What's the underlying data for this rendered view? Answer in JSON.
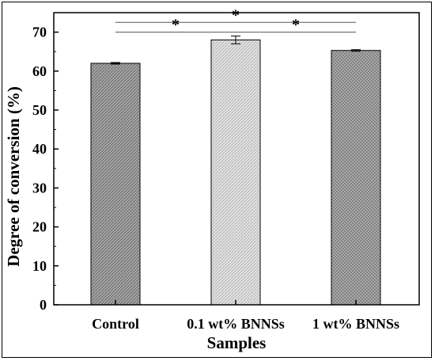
{
  "chart_data": {
    "type": "bar",
    "categories": [
      "Control",
      "0.1 wt% BNNSs",
      "1 wt% BNNSs"
    ],
    "values": [
      62.0,
      68.0,
      65.3
    ],
    "errors": [
      0.2,
      1.0,
      0.2
    ],
    "xlabel": "Samples",
    "ylabel": "Degree of conversion (%)",
    "ylim": [
      0,
      75
    ],
    "yticks": [
      0,
      10,
      20,
      30,
      40,
      50,
      60,
      70
    ],
    "grid": false,
    "bar_fills": [
      "#9a9a9a",
      "#d9d9d9",
      "#a8a8a8"
    ],
    "significance": [
      {
        "from": 0,
        "to": 2,
        "label": "*",
        "y": 72.5
      },
      {
        "from": 0,
        "to": 1,
        "label": "*",
        "y": 70.0
      },
      {
        "from": 1,
        "to": 2,
        "label": "*",
        "y": 70.0
      }
    ]
  }
}
